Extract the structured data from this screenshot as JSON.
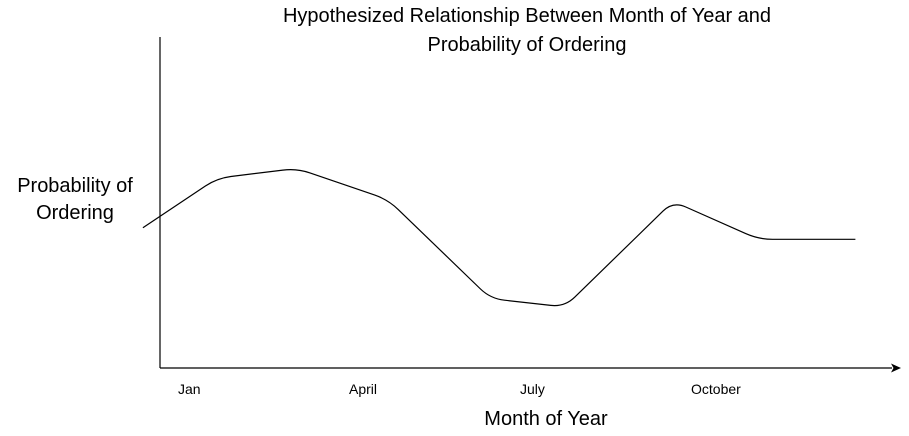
{
  "chart_data": {
    "type": "line",
    "title_lines": [
      "Hypothesized Relationship Between Month of Year and",
      "Probability of Ordering"
    ],
    "xlabel": "Month of Year",
    "ylabel_lines": [
      "Probability of",
      "Ordering"
    ],
    "x_ticks": [
      {
        "label": "Jan",
        "month": 1
      },
      {
        "label": "April",
        "month": 4
      },
      {
        "label": "July",
        "month": 7
      },
      {
        "label": "October",
        "month": 10
      }
    ],
    "xlim": [
      1,
      13.5
    ],
    "ylim": [
      0,
      1
    ],
    "grid": false,
    "line_color": "#000000",
    "axis_color": "#000000",
    "series": [
      {
        "points": [
          {
            "x": 0.7,
            "y": 0.425
          },
          {
            "x": 2.0,
            "y": 0.575
          },
          {
            "x": 3.4,
            "y": 0.605
          },
          {
            "x": 5.0,
            "y": 0.51
          },
          {
            "x": 6.8,
            "y": 0.21
          },
          {
            "x": 8.1,
            "y": 0.185
          },
          {
            "x": 10.0,
            "y": 0.505
          },
          {
            "x": 11.5,
            "y": 0.39
          },
          {
            "x": 13.2,
            "y": 0.39
          }
        ]
      }
    ]
  }
}
